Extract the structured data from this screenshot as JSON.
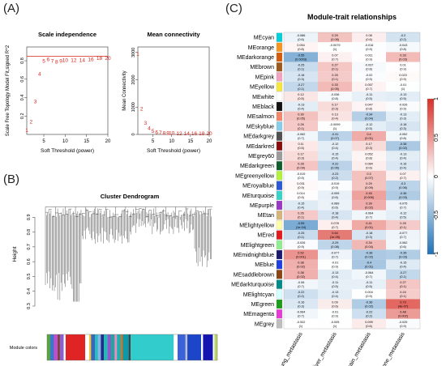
{
  "panels": {
    "a_letter": "(A)",
    "b_letter": "(B)",
    "c_letter": "(C)"
  },
  "colors": {
    "red": "#e0302a",
    "blue": "#1e74b8",
    "point_red": "#d9261c"
  },
  "chart_data": [
    {
      "type": "scatter",
      "title": "Scale independence",
      "xlabel": "Soft Threshold (power)",
      "ylabel": "Scale Free Topology Model Fit,signed R^2",
      "xlim": [
        1,
        20
      ],
      "ylim": [
        0,
        0.95
      ],
      "xticks": [
        "5",
        "10",
        "15",
        "20"
      ],
      "yticks": [
        "0.2",
        "0.4",
        "0.6",
        "0.8"
      ],
      "hline": 0.85,
      "points": [
        {
          "x": 1,
          "y": 0.05,
          "label": "1"
        },
        {
          "x": 2,
          "y": 0.14,
          "label": "2"
        },
        {
          "x": 3,
          "y": 0.36,
          "label": "3"
        },
        {
          "x": 4,
          "y": 0.66,
          "label": "4"
        },
        {
          "x": 5,
          "y": 0.8,
          "label": "5"
        },
        {
          "x": 6,
          "y": 0.82,
          "label": "6"
        },
        {
          "x": 7,
          "y": 0.8,
          "label": "7"
        },
        {
          "x": 8,
          "y": 0.79,
          "label": "8"
        },
        {
          "x": 9,
          "y": 0.8,
          "label": "9"
        },
        {
          "x": 10,
          "y": 0.81,
          "label": "10"
        },
        {
          "x": 12,
          "y": 0.81,
          "label": "12"
        },
        {
          "x": 14,
          "y": 0.81,
          "label": "14"
        },
        {
          "x": 16,
          "y": 0.82,
          "label": "16"
        },
        {
          "x": 18,
          "y": 0.83,
          "label": "18"
        },
        {
          "x": 20,
          "y": 0.83,
          "label": "20"
        }
      ]
    },
    {
      "type": "scatter",
      "title": "Mean connectivity",
      "xlabel": "Soft Threshold (power)",
      "ylabel": "Mean Connectivity",
      "xlim": [
        1,
        20
      ],
      "ylim": [
        0,
        3200
      ],
      "xticks": [
        "5",
        "10",
        "15",
        "20"
      ],
      "yticks": [
        "0",
        "1000",
        "2000",
        "3000"
      ],
      "points": [
        {
          "x": 1,
          "y": 2950,
          "label": "1"
        },
        {
          "x": 2,
          "y": 950,
          "label": "2"
        },
        {
          "x": 3,
          "y": 430,
          "label": "3"
        },
        {
          "x": 4,
          "y": 230,
          "label": "4"
        },
        {
          "x": 5,
          "y": 140,
          "label": "5"
        },
        {
          "x": 6,
          "y": 95,
          "label": "6"
        },
        {
          "x": 7,
          "y": 75,
          "label": "7"
        },
        {
          "x": 8,
          "y": 65,
          "label": "8"
        },
        {
          "x": 9,
          "y": 60,
          "label": "9"
        },
        {
          "x": 10,
          "y": 55,
          "label": "10"
        },
        {
          "x": 12,
          "y": 50,
          "label": "12"
        },
        {
          "x": 14,
          "y": 48,
          "label": "14"
        },
        {
          "x": 16,
          "y": 46,
          "label": "16"
        },
        {
          "x": 18,
          "y": 45,
          "label": "18"
        },
        {
          "x": 20,
          "y": 44,
          "label": "20"
        }
      ]
    },
    {
      "type": "other",
      "title": "Cluster Dendrogram",
      "ylabel": "Height",
      "yticks": [
        "0.3",
        "0.4",
        "0.5",
        "0.6",
        "0.7",
        "0.8",
        "0.9"
      ],
      "ylim": [
        0.3,
        1.0
      ],
      "colorbar_label": "Module colors",
      "module_colors": [
        {
          "color": "#5aa832",
          "w": 1.5
        },
        {
          "color": "#3a78c9",
          "w": 2
        },
        {
          "color": "#c04fcf",
          "w": 2
        },
        {
          "color": "#7a3f1c",
          "w": 1
        },
        {
          "color": "#8a5fcf",
          "w": 2
        },
        {
          "color": "#ffffff",
          "w": 1
        },
        {
          "color": "#e02424",
          "w": 10
        },
        {
          "color": "#ffffff",
          "w": 2
        },
        {
          "color": "#f4c542",
          "w": 1
        },
        {
          "color": "#3c66b8",
          "w": 2
        },
        {
          "color": "#20c0c0",
          "w": 1.5
        },
        {
          "color": "#8fb1e8",
          "w": 1.5
        },
        {
          "color": "#1e2f8a",
          "w": 1.5
        },
        {
          "color": "#29b6b6",
          "w": 2
        },
        {
          "color": "#a14fd0",
          "w": 1.5
        },
        {
          "color": "#25a2a2",
          "w": 2
        },
        {
          "color": "#ec8bbd",
          "w": 1.2
        },
        {
          "color": "#1fb0b0",
          "w": 2
        },
        {
          "color": "#e66b1e",
          "w": 1
        },
        {
          "color": "#0c9aa8",
          "w": 3
        },
        {
          "color": "#444444",
          "w": 1
        },
        {
          "color": "#33cccc",
          "w": 22
        },
        {
          "color": "#ffffff",
          "w": 2
        },
        {
          "color": "#3b62d8",
          "w": 4
        },
        {
          "color": "#c0bfcf",
          "w": 1
        },
        {
          "color": "#1c45c8",
          "w": 7
        },
        {
          "color": "#ffffff",
          "w": 1
        },
        {
          "color": "#1414b0",
          "w": 5
        },
        {
          "color": "#ffffff",
          "w": 0.8
        },
        {
          "color": "#b7d36a",
          "w": 1.5
        }
      ]
    },
    {
      "type": "heatmap",
      "title": "Module-trait relationships",
      "columns": [
        "Lung_metastasis",
        "Liver_metastasis",
        "Brain_metastasis",
        "Bone_metastasis"
      ],
      "colorbar_ticks": [
        "1",
        "0.5",
        "0",
        "-0.5",
        "-1"
      ],
      "rows": [
        {
          "name": "MEcyan",
          "color": "#00d0d8",
          "cells": [
            [
              "-0.086",
              "(0.6)"
            ],
            [
              "0.29",
              "(0.08)"
            ],
            [
              "0.08",
              "(0.6)"
            ],
            [
              "-0.2",
              "(0.2)"
            ]
          ]
        },
        {
          "name": "MEorange",
          "color": "#f79320",
          "cells": [
            [
              "0.054",
              "(0.8)"
            ],
            [
              "-0.0079",
              "(1)"
            ],
            [
              "-0.016",
              "(0.9)"
            ],
            [
              "-0.043",
              "(0.8)"
            ]
          ]
        },
        {
          "name": "MEdarkorange",
          "color": "#d65a0c",
          "cells": [
            [
              "-0.55",
              "(0.0003)"
            ],
            [
              "0.07",
              "(0.7)"
            ],
            [
              "0.011",
              "(0.9)"
            ],
            [
              "0.33",
              "(0.03)"
            ]
          ]
        },
        {
          "name": "MEbrown",
          "color": "#9b5a1c",
          "cells": [
            [
              "-0.25",
              "(0.1)"
            ],
            [
              "0.27",
              "(0.1)"
            ],
            [
              "-0.037",
              "(0.8)"
            ],
            [
              "0.01",
              "(0.9)"
            ]
          ]
        },
        {
          "name": "MEpink",
          "color": "#f2a2c0",
          "cells": [
            [
              "-0.18",
              "(0.3)"
            ],
            [
              "0.25",
              "(0.1)"
            ],
            [
              "-0.02",
              "(0.9)"
            ],
            [
              "0.023",
              "(0.9)"
            ]
          ]
        },
        {
          "name": "MEyellow",
          "color": "#f5e73c",
          "cells": [
            [
              "-0.27",
              "(0.1)"
            ],
            [
              "0.33",
              "(0.05)"
            ],
            [
              "0.057",
              "(0.7)"
            ],
            [
              "-0.01",
              "(1)"
            ]
          ]
        },
        {
          "name": "MEwhite",
          "color": "#ffffff",
          "cells": [
            [
              "0.12",
              "(0.5)"
            ],
            [
              "-0.036",
              "(0.8)"
            ],
            [
              "-0.11",
              "(0.5)"
            ],
            [
              "-0.13",
              "(0.5)"
            ]
          ]
        },
        {
          "name": "MEblack",
          "color": "#111111",
          "cells": [
            [
              "-0.13",
              "(0.4)"
            ],
            [
              "0.17",
              "(0.3)"
            ],
            [
              "0.047",
              "(0.8)"
            ],
            [
              "-0.026",
              "(0.9)"
            ]
          ]
        },
        {
          "name": "MEsalmon",
          "color": "#f4866c",
          "cells": [
            [
              "0.30",
              "(0.05)"
            ],
            [
              "0.13",
              "(0.4)"
            ],
            [
              "-0.34",
              "(0.04)"
            ],
            [
              "-0.13",
              "(0.3)"
            ]
          ]
        },
        {
          "name": "MEskyblue",
          "color": "#87cdeb",
          "cells": [
            [
              "0.26",
              "(0.1)"
            ],
            [
              "-0.0099",
              "(1)"
            ],
            [
              "-0.12",
              "(0.5)"
            ],
            [
              "-0.18",
              "(0.3)"
            ]
          ]
        },
        {
          "name": "MEdarkgrey",
          "color": "#505050",
          "cells": [
            [
              "-0.062",
              "(0.7)"
            ],
            [
              "-0.31",
              "(0.07)"
            ],
            [
              "0.4",
              "(0.01)"
            ],
            [
              "-0.052",
              "(0.8)"
            ]
          ]
        },
        {
          "name": "MEdarkred",
          "color": "#8b0a0a",
          "cells": [
            [
              "0.11",
              "(0.5)"
            ],
            [
              "-0.12",
              "(0.4)"
            ],
            [
              "0.17",
              "(0.3)"
            ],
            [
              "-0.38",
              "(0.02)"
            ]
          ]
        },
        {
          "name": "MEgrey60",
          "color": "#9c9c9c",
          "cells": [
            [
              "0.17",
              "(0.3)"
            ],
            [
              "-0.15",
              "(0.4)"
            ],
            [
              "0.052",
              "(0.8)"
            ],
            [
              "-0.13",
              "(0.4)"
            ]
          ]
        },
        {
          "name": "MEdarkgreen",
          "color": "#0f5e2c",
          "cells": [
            [
              "0.28",
              "(0.09)"
            ],
            [
              "-0.31",
              "(0.06)"
            ],
            [
              "0.084",
              "(0.6)"
            ],
            [
              "-0.16",
              "(0.4)"
            ]
          ]
        },
        {
          "name": "MEgreenyellow",
          "color": "#b3f23c",
          "cells": [
            [
              "-0.019",
              "(0.9)"
            ],
            [
              "-0.23",
              "(0.2)"
            ],
            [
              "0.3",
              "(0.07)"
            ],
            [
              "0.07",
              "(0.7)"
            ]
          ]
        },
        {
          "name": "MEroyalblue",
          "color": "#2b58d6",
          "cells": [
            [
              "0.031",
              "(0.9)"
            ],
            [
              "-0.019",
              "(0.9)"
            ],
            [
              "0.29",
              "(0.09)"
            ],
            [
              "-0.3",
              "(0.06)"
            ]
          ]
        },
        {
          "name": "MEturquoise",
          "color": "#36d4c8",
          "cells": [
            [
              "0.014",
              "(0.9)"
            ],
            [
              "-0.099",
              "(0.6)"
            ],
            [
              "0.45",
              "(0.006)"
            ],
            [
              "-0.36",
              "(0.03)"
            ]
          ]
        },
        {
          "name": "MEpurple",
          "color": "#9a39c6",
          "cells": [
            [
              "-0.15",
              "(0.4)"
            ],
            [
              "-0.089",
              "(0.6)"
            ],
            [
              "0.39",
              "(0.02)"
            ],
            [
              "-0.075",
              "(0.7)"
            ]
          ]
        },
        {
          "name": "MEtan",
          "color": "#d6b47c",
          "cells": [
            [
              "0.26",
              "(0.1)"
            ],
            [
              "-0.18",
              "(0.4)"
            ],
            [
              "-0.064",
              "(0.7)"
            ],
            [
              "-0.12",
              "(0.5)"
            ]
          ]
        },
        {
          "name": "MElightyellow",
          "color": "#ffffaa",
          "cells": [
            [
              "-0.59",
              "(1e-04)"
            ],
            [
              "0.078",
              "(0.7)"
            ],
            [
              "0.41",
              "(0.01)"
            ],
            [
              "0.25",
              "(0.1)"
            ]
          ]
        },
        {
          "name": "MEred",
          "color": "#e41a1c",
          "cells": [
            [
              "-0.25",
              "(0.1)"
            ],
            [
              "0.64",
              "(1e-05)"
            ],
            [
              "-0.18",
              "(0.3)"
            ],
            [
              "-0.077",
              "(0.7)"
            ]
          ]
        },
        {
          "name": "MElightgreen",
          "color": "#90ee90",
          "cells": [
            [
              "-0.026",
              "(0.9)"
            ],
            [
              "-0.29",
              "(0.08)"
            ],
            [
              "0.34",
              "(0.04)"
            ],
            [
              "-0.062",
              "(0.6)"
            ]
          ]
        },
        {
          "name": "MEmidnightblue",
          "color": "#191970",
          "cells": [
            [
              "0.52",
              "(0.001)"
            ],
            [
              "-0.077",
              "(0.7)"
            ],
            [
              "-0.38",
              "(0.02)"
            ],
            [
              "-0.35",
              "(0.03)"
            ]
          ]
        },
        {
          "name": "MEblue",
          "color": "#1f3fe0",
          "cells": [
            [
              "0.38",
              "(0.02)"
            ],
            [
              "-0.01",
              "(0.9)"
            ],
            [
              "-0.4",
              "(0.01)"
            ],
            [
              "-0.15",
              "(0.4)"
            ]
          ]
        },
        {
          "name": "MEsaddlebrown",
          "color": "#8b4513",
          "cells": [
            [
              "0.38",
              "(0.02)"
            ],
            [
              "-0.13",
              "(0.4)"
            ],
            [
              "-0.064",
              "(0.7)"
            ],
            [
              "-0.27",
              "(0.1)"
            ]
          ]
        },
        {
          "name": "MEdarkturquoise",
          "color": "#008b8b",
          "cells": [
            [
              "-0.06",
              "(0.7)"
            ],
            [
              "-0.11",
              "(0.5)"
            ],
            [
              "-0.11",
              "(0.5)"
            ],
            [
              "0.27",
              "(0.1)"
            ]
          ]
        },
        {
          "name": "MElightcyan",
          "color": "#d5ffff",
          "cells": [
            [
              "-0.22",
              "(0.2)"
            ],
            [
              "-0.13",
              "(0.4)"
            ],
            [
              "0.004",
              "(0.9)"
            ],
            [
              "0.24",
              "(0.1)"
            ]
          ]
        },
        {
          "name": "MEgreen",
          "color": "#1b9e1b",
          "cells": [
            [
              "-0.16",
              "(0.3)"
            ],
            [
              "0.09",
              "(0.6)"
            ],
            [
              "-0.36",
              "(0.02)"
            ],
            [
              "0.73",
              "(4e-07)"
            ]
          ]
        },
        {
          "name": "MEmagenta",
          "color": "#e639d6",
          "cells": [
            [
              "-0.064",
              "(0.7)"
            ],
            [
              "-0.01",
              "(0.9)"
            ],
            [
              "-0.22",
              "(0.2)"
            ],
            [
              "0.48",
              "(0.002)"
            ]
          ]
        },
        {
          "name": "MEgrey",
          "color": "#bebebe",
          "cells": [
            [
              "-0.002",
              "(1)"
            ],
            [
              "-0.005",
              "(1)"
            ],
            [
              "0.099",
              "(0.6)"
            ],
            [
              "-0.025",
              "(0.9)"
            ]
          ]
        }
      ]
    }
  ]
}
